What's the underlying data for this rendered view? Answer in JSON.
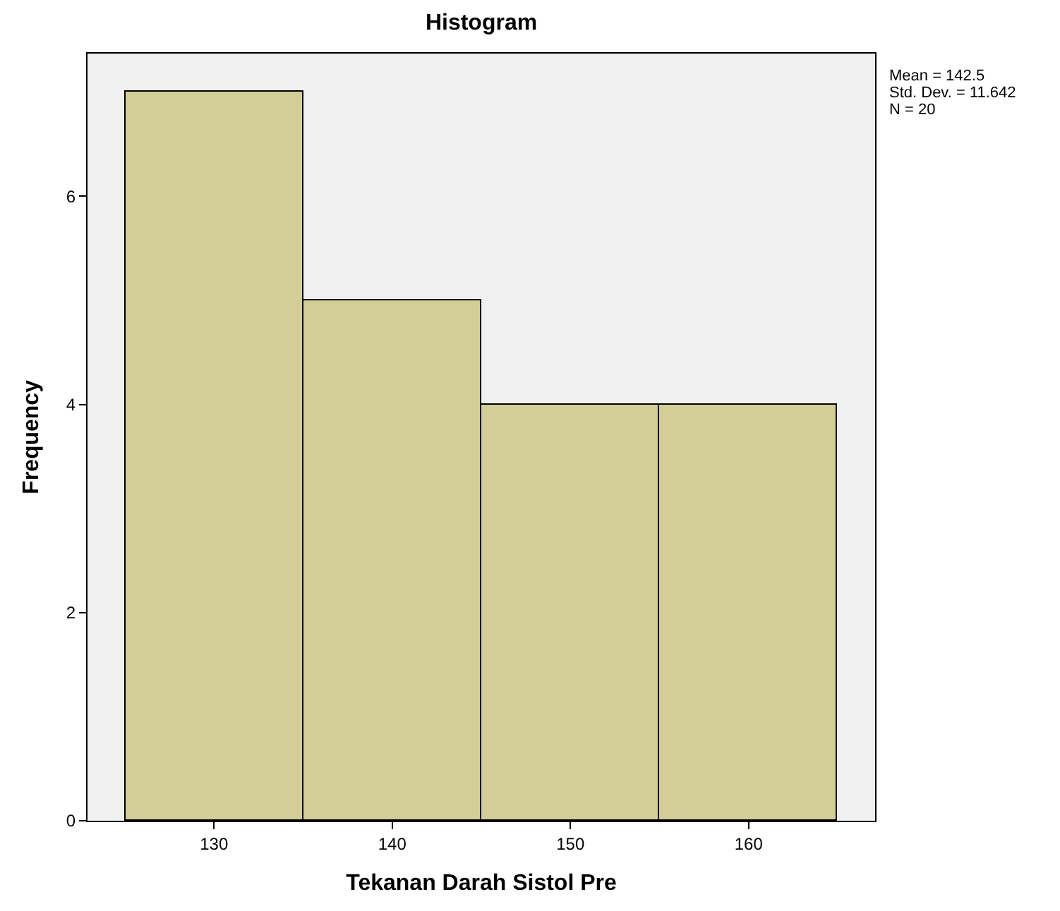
{
  "chart_data": {
    "type": "histogram",
    "title": "Histogram",
    "xlabel": "Tekanan Darah Sistol Pre",
    "ylabel": "Frequency",
    "bins": [
      125,
      135,
      145,
      155,
      165
    ],
    "values": [
      7,
      5,
      4,
      4
    ],
    "color": "#d3ce97",
    "xlim": [
      122.9,
      167.1
    ],
    "xticks": [
      130,
      140,
      150,
      160
    ],
    "ylim": [
      0,
      7.37
    ],
    "yticks": [
      0,
      2,
      4,
      6
    ],
    "grid": false,
    "annotations": [
      "Mean = 142.5",
      "Std. Dev. = 11.642",
      "N = 20"
    ]
  }
}
